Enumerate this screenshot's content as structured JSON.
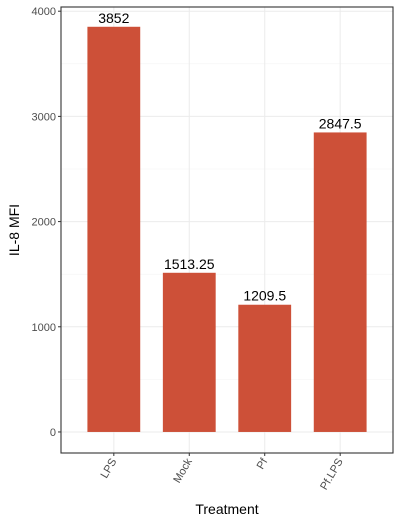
{
  "chart_data": {
    "type": "bar",
    "categories": [
      "LPS",
      "Mock",
      "Pf",
      "Pf.LPS"
    ],
    "values": [
      3852,
      1513.25,
      1209.5,
      2847.5
    ],
    "data_labels": [
      "3852",
      "1513.25",
      "1209.5",
      "2847.5"
    ],
    "title": "",
    "xlabel": "Treatment",
    "ylabel": "IL-8 MFI",
    "ylim": [
      -200,
      4040
    ],
    "y_ticks": [
      0,
      1000,
      2000,
      3000,
      4000
    ],
    "y_tick_labels": [
      "0",
      "1000",
      "2000",
      "3000",
      "4000"
    ],
    "x_tick_rotation_deg": 60,
    "grid": true,
    "theme": "bw",
    "bar_color": "#cd5038"
  }
}
